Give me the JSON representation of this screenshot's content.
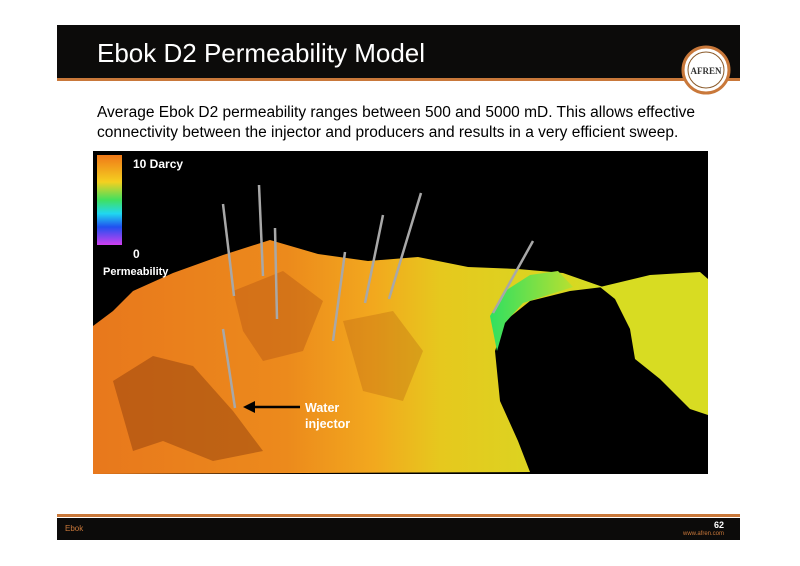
{
  "header": {
    "title": "Ebok D2 Permeability Model",
    "logo": "AFREN"
  },
  "body": {
    "text_lines": [
      "Average Ebok D2 permeability ranges between 500 and 5000 mD.  This allows effective",
      "connectivity between the injector and producers and results in a very efficient sweep."
    ]
  },
  "figure": {
    "legend": {
      "max_label": "10 Darcy",
      "min_label": "0",
      "title": "Permeability"
    },
    "annotation": [
      "Water",
      "injector"
    ]
  },
  "footer": {
    "section": "Ebok",
    "page": "62",
    "website": "www.afren.com"
  }
}
